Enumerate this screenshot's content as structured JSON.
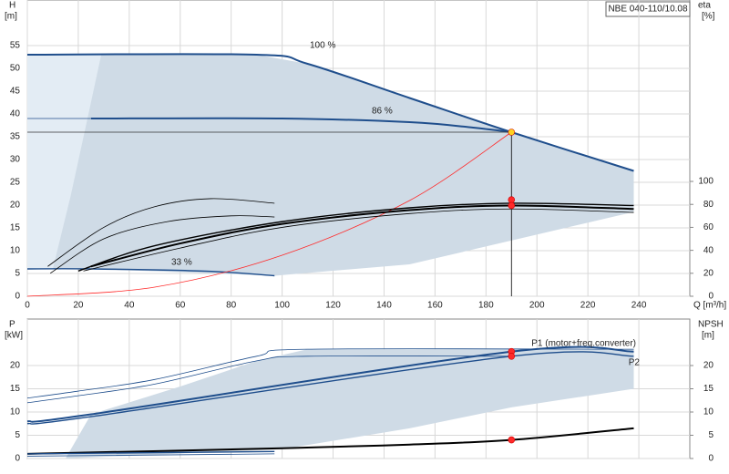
{
  "chart_data": [
    {
      "type": "line",
      "model": "NBE 040-110/10.08",
      "ylabel": "H",
      "yunit": "[m]",
      "y2label": "eta",
      "y2unit": "[%]",
      "xlabel": "Q [m³/h]",
      "xlim": [
        0,
        260
      ],
      "xticks": [
        0,
        20,
        40,
        60,
        80,
        100,
        120,
        140,
        160,
        180,
        200,
        220,
        240
      ],
      "ylim": [
        0,
        65
      ],
      "yticks": [
        0,
        5,
        10,
        15,
        20,
        25,
        30,
        35,
        40,
        45,
        50,
        55
      ],
      "y2lim": [
        0,
        258
      ],
      "y2ticks": [
        0,
        20,
        40,
        60,
        80,
        100
      ],
      "grid": true,
      "annotations": [
        {
          "text": "100 %"
        },
        {
          "text": "86 %"
        },
        {
          "text": "33 %"
        }
      ],
      "series": [
        {
          "style": "area",
          "color": "#cfdbe6",
          "x": [
            0,
            90,
            110,
            190,
            238,
            238,
            150,
            97,
            25,
            0
          ],
          "values": [
            53,
            53,
            51,
            36,
            27.5,
            18.5,
            7,
            4.5,
            6,
            6
          ]
        },
        {
          "style": "area",
          "color": "#e3ecf4",
          "x": [
            0,
            29,
            24,
            17,
            10,
            0
          ],
          "values": [
            53,
            53,
            40,
            22,
            6,
            6
          ]
        },
        {
          "style": "thick",
          "color": "#1f4e8c",
          "x": [
            0,
            90,
            110,
            150,
            190,
            238
          ],
          "values": [
            53,
            53,
            51,
            43.5,
            36,
            27.5
          ]
        },
        {
          "style": "thick",
          "color": "#1f4e8c",
          "x": [
            25,
            100,
            150,
            175,
            190
          ],
          "values": [
            39,
            39,
            38.2,
            37,
            36
          ]
        },
        {
          "style": "thin",
          "color": "#1f4e8c",
          "x": [
            0,
            25
          ],
          "values": [
            39,
            39
          ]
        },
        {
          "style": "mid",
          "color": "#1f4e8c",
          "x": [
            0,
            25,
            70,
            97
          ],
          "values": [
            6,
            6,
            5.5,
            4.5
          ]
        },
        {
          "style": "thin",
          "color": "#333333",
          "x": [
            0,
            190
          ],
          "values": [
            36,
            36
          ]
        },
        {
          "style": "thin",
          "color": "#ff2a2a",
          "x": [
            0,
            50,
            100,
            150,
            190
          ],
          "values": [
            0,
            2,
            9,
            21,
            36
          ]
        },
        {
          "style": "thin",
          "color": "#000000",
          "axis": "y2",
          "x": [
            8,
            30,
            50,
            72,
            97
          ],
          "values": [
            26,
            60,
            78,
            85,
            81
          ]
        },
        {
          "style": "thin",
          "color": "#000000",
          "axis": "y2",
          "x": [
            9,
            30,
            55,
            80,
            97
          ],
          "values": [
            20,
            50,
            65,
            70,
            69
          ]
        },
        {
          "style": "mid",
          "color": "#000000",
          "axis": "y2",
          "x": [
            20,
            50,
            100,
            150,
            190,
            238
          ],
          "values": [
            22,
            44,
            65,
            77,
            81,
            79
          ]
        },
        {
          "style": "thick",
          "color": "#000000",
          "axis": "y2",
          "x": [
            25,
            60,
            100,
            150,
            190,
            238
          ],
          "values": [
            26,
            46,
            63,
            75,
            79,
            76
          ]
        },
        {
          "style": "thin",
          "color": "#000000",
          "axis": "y2",
          "x": [
            22,
            60,
            100,
            150,
            190,
            238
          ],
          "values": [
            22,
            42,
            60,
            72,
            76,
            73
          ]
        },
        {
          "style": "thin",
          "color": "#000000",
          "x": [
            190,
            190
          ],
          "values": [
            36,
            0
          ]
        },
        {
          "style": "point",
          "color": "#ff2a2a",
          "axis": "y2",
          "x": [
            190,
            190
          ],
          "values": [
            84,
            79
          ]
        },
        {
          "style": "point",
          "color": "#ffd21f",
          "x": [
            190
          ],
          "values": [
            36
          ]
        }
      ]
    },
    {
      "type": "line",
      "ylabel": "P",
      "yunit": "[kW]",
      "y2label": "NPSH",
      "y2unit": "[m]",
      "xlim": [
        0,
        260
      ],
      "ylim": [
        0,
        30
      ],
      "yticks": [
        0,
        5,
        10,
        15,
        20
      ],
      "y2lim": [
        0,
        30
      ],
      "y2ticks": [
        0,
        5,
        10,
        15,
        20
      ],
      "grid": true,
      "annotations": [
        {
          "text": "P1 (motor+freq.converter)"
        },
        {
          "text": "P2"
        }
      ],
      "series": [
        {
          "style": "area",
          "color": "#cfdbe6",
          "x": [
            15,
            25,
            60,
            90,
            110,
            238,
            238,
            190,
            150,
            100,
            15
          ],
          "values": [
            0,
            9.5,
            15.5,
            21,
            23.5,
            23.5,
            15,
            11,
            6.5,
            2,
            0
          ]
        },
        {
          "style": "thin",
          "color": "#1f4e8c",
          "x": [
            0,
            20,
            50,
            90,
            110,
            238
          ],
          "values": [
            13,
            14.5,
            17,
            22,
            23.5,
            23.5
          ]
        },
        {
          "style": "thin",
          "color": "#1f4e8c",
          "x": [
            0,
            20,
            50,
            90,
            110,
            190
          ],
          "values": [
            12,
            13.5,
            16,
            21,
            22,
            22
          ]
        },
        {
          "style": "thick",
          "color": "#1f4e8c",
          "x": [
            0,
            25,
            190,
            238
          ],
          "values": [
            8,
            9.5,
            23,
            23
          ]
        },
        {
          "style": "mid",
          "color": "#1f4e8c",
          "x": [
            0,
            25,
            190,
            238
          ],
          "values": [
            7.5,
            9,
            22,
            22
          ]
        },
        {
          "style": "thick",
          "color": "#000000",
          "axis": "y2",
          "x": [
            0,
            100,
            150,
            190,
            238
          ],
          "values": [
            1,
            2.2,
            3,
            4,
            6.5
          ]
        },
        {
          "style": "mid",
          "color": "#1f4e8c",
          "x": [
            0,
            97
          ],
          "values": [
            1,
            1.5
          ]
        },
        {
          "style": "thin",
          "color": "#1f4e8c",
          "x": [
            0,
            97
          ],
          "values": [
            0.5,
            1
          ]
        },
        {
          "style": "point",
          "color": "#ff2a2a",
          "x": [
            190,
            190
          ],
          "values": [
            23,
            22
          ]
        },
        {
          "style": "point",
          "color": "#ff2a2a",
          "axis": "y2",
          "x": [
            190
          ],
          "values": [
            4
          ]
        }
      ]
    }
  ]
}
